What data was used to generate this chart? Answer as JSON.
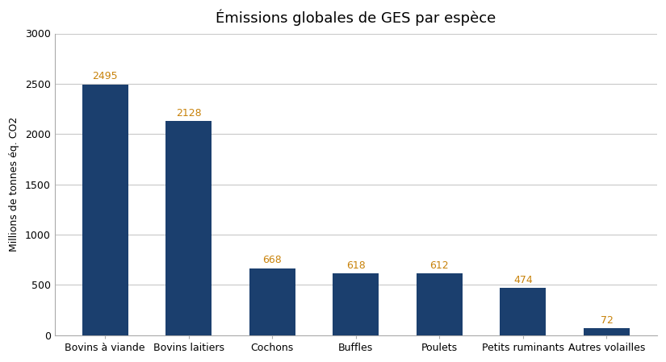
{
  "title": "Émissions globales de GES par espèce",
  "categories": [
    "Bovins à viande",
    "Bovins laitiers",
    "Cochons",
    "Buffles",
    "Poulets",
    "Petits ruminants",
    "Autres volailles"
  ],
  "values": [
    2495,
    2128,
    668,
    618,
    612,
    474,
    72
  ],
  "bar_color": "#1b3f6e",
  "ylabel": "Millions de tonnes éq. CO2",
  "ylim": [
    0,
    3000
  ],
  "yticks": [
    0,
    500,
    1000,
    1500,
    2000,
    2500,
    3000
  ],
  "background_color": "#ffffff",
  "grid_color": "#c8c8c8",
  "title_fontsize": 13,
  "label_fontsize": 9,
  "tick_fontsize": 9,
  "annotation_fontsize": 9,
  "annotation_color": "#c8820a",
  "spine_color": "#aaaaaa"
}
